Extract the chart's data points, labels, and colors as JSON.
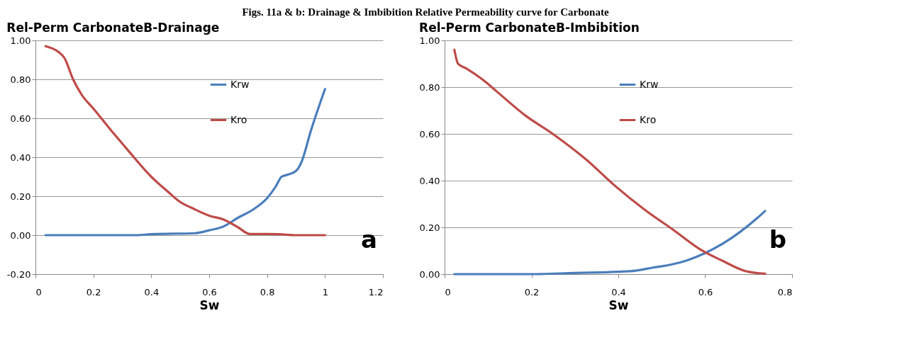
{
  "chart_data": [
    {
      "type": "other",
      "title": "Figs. 11a & b: Drainage & Imbibition Relative Permeability curve for Carbonate"
    },
    {
      "type": "line",
      "title": "Rel-Perm CarbonateB-Drainage",
      "xlabel": "Sw",
      "annotations": [
        "a"
      ],
      "xlim": [
        0,
        1.2
      ],
      "xticks": [
        0,
        0.2,
        0.4,
        0.6,
        0.8,
        1,
        1.2
      ],
      "ylim": [
        -0.2,
        1.0
      ],
      "yticks": [
        {
          "value": -0.2,
          "label": "-0.20"
        },
        {
          "value": 0,
          "label": "0.00"
        },
        {
          "value": 0.2,
          "label": "0.20"
        },
        {
          "value": 0.4,
          "label": "0.40"
        },
        {
          "value": 0.6,
          "label": "0.60"
        },
        {
          "value": 0.8,
          "label": "0.80"
        },
        {
          "value": 1,
          "label": "1.00"
        }
      ],
      "grid": "y",
      "legend": "top right",
      "marker": "none",
      "series": [
        {
          "name": "Krw",
          "color": "#4a7ebb",
          "x": [
            0.035,
            0.35,
            0.4,
            0.55,
            0.6,
            0.65,
            0.7,
            0.75,
            0.8,
            0.83,
            0.85,
            0.87,
            0.9,
            0.92,
            0.95,
            1.0
          ],
          "values": [
            0,
            0,
            0.005,
            0.01,
            0.025,
            0.045,
            0.09,
            0.13,
            0.19,
            0.25,
            0.3,
            0.31,
            0.33,
            0.38,
            0.53,
            0.75
          ]
        },
        {
          "name": "Kro",
          "color": "#be4b48",
          "x": [
            0.035,
            0.08,
            0.1,
            0.13,
            0.16,
            0.2,
            0.26,
            0.3,
            0.34,
            0.4,
            0.46,
            0.5,
            0.54,
            0.6,
            0.65,
            0.7,
            0.74,
            0.8,
            0.84,
            0.9,
            1.0
          ],
          "values": [
            0.97,
            0.94,
            0.91,
            0.8,
            0.72,
            0.65,
            0.54,
            0.47,
            0.4,
            0.3,
            0.22,
            0.17,
            0.14,
            0.1,
            0.08,
            0.04,
            0.006,
            0.006,
            0.005,
            0,
            0
          ]
        }
      ]
    },
    {
      "type": "line",
      "title": "Rel-Perm CarbonateB-Imbibition",
      "xlabel": "Sw",
      "annotations": [
        "b"
      ],
      "xlim": [
        0,
        0.8
      ],
      "xticks": [
        0,
        0.2,
        0.4,
        0.6,
        0.8
      ],
      "ylim": [
        0,
        1.0
      ],
      "yticks": [
        {
          "value": 0,
          "label": "0.00"
        },
        {
          "value": 0.2,
          "label": "0.20"
        },
        {
          "value": 0.4,
          "label": "0.40"
        },
        {
          "value": 0.6,
          "label": "0.60"
        },
        {
          "value": 0.8,
          "label": "0.80"
        },
        {
          "value": 1,
          "label": "1.00"
        }
      ],
      "grid": "y",
      "legend": "top right",
      "marker": "none",
      "series": [
        {
          "name": "Krw",
          "color": "#4a7ebb",
          "x": [
            0.0225,
            0.2,
            0.3,
            0.4,
            0.44,
            0.48,
            0.52,
            0.56,
            0.6,
            0.64,
            0.68,
            0.72,
            0.738
          ],
          "values": [
            0,
            0,
            0.005,
            0.01,
            0.015,
            0.028,
            0.04,
            0.06,
            0.09,
            0.13,
            0.18,
            0.24,
            0.27
          ]
        },
        {
          "name": "Kro",
          "color": "#be4b48",
          "x": [
            0.0225,
            0.031,
            0.05,
            0.089,
            0.121,
            0.185,
            0.249,
            0.326,
            0.391,
            0.461,
            0.526,
            0.59,
            0.641,
            0.693,
            0.738
          ],
          "values": [
            0.96,
            0.9,
            0.88,
            0.83,
            0.78,
            0.68,
            0.6,
            0.49,
            0.38,
            0.275,
            0.19,
            0.104,
            0.056,
            0.013,
            0.002
          ]
        }
      ]
    }
  ]
}
